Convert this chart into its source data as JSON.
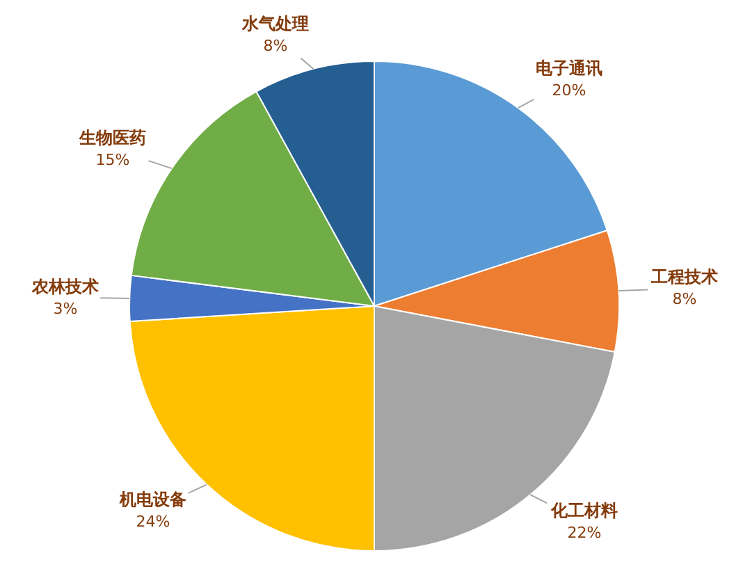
{
  "chart_data": {
    "type": "pie",
    "categories": [
      "电子通讯",
      "工程技术",
      "化工材料",
      "机电设备",
      "农林技术",
      "生物医药",
      "水气处理"
    ],
    "values": [
      20,
      8,
      22,
      24,
      3,
      15,
      8
    ],
    "colors": [
      "#5b9bd5",
      "#ed7d31",
      "#a5a5a5",
      "#ffc000",
      "#4472c4",
      "#70ad47",
      "#255e91"
    ],
    "value_labels": [
      "20%",
      "8%",
      "22%",
      "24%",
      "3%",
      "15%",
      "8%"
    ]
  }
}
